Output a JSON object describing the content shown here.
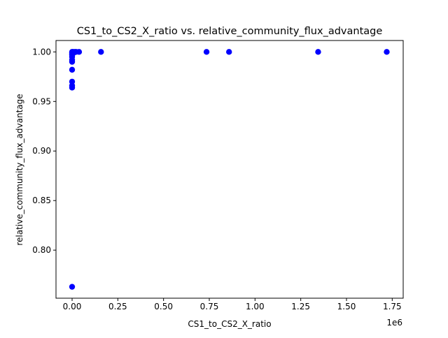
{
  "chart_data": {
    "type": "scatter",
    "title": "CS1_to_CS2_X_ratio vs. relative_community_flux_advantage",
    "xlabel": "CS1_to_CS2_X_ratio",
    "ylabel": "relative_community_flux_advantage",
    "x_offset_label": "1e6",
    "x_scale_factor": 1000000,
    "xlim": [
      -88000,
      1810000
    ],
    "ylim": [
      0.7515,
      1.0115
    ],
    "x_ticks": [
      0,
      250000,
      500000,
      750000,
      1000000,
      1250000,
      1500000,
      1750000
    ],
    "x_tick_labels": [
      "0.00",
      "0.25",
      "0.50",
      "0.75",
      "1.00",
      "1.25",
      "1.50",
      "1.75"
    ],
    "y_ticks": [
      0.8,
      0.85,
      0.9,
      0.95,
      1.0
    ],
    "y_tick_labels": [
      "0.80",
      "0.85",
      "0.90",
      "0.95",
      "1.00"
    ],
    "grid": false,
    "marker_color": "#0000ff",
    "series": [
      {
        "points": [
          {
            "x": 0,
            "y": 1.0
          },
          {
            "x": 0,
            "y": 0.999
          },
          {
            "x": 0,
            "y": 0.998
          },
          {
            "x": 0,
            "y": 0.997
          },
          {
            "x": 0,
            "y": 0.995
          },
          {
            "x": 0,
            "y": 0.992
          },
          {
            "x": 0,
            "y": 0.99
          },
          {
            "x": 0,
            "y": 0.982
          },
          {
            "x": 0,
            "y": 0.97
          },
          {
            "x": 0,
            "y": 0.966
          },
          {
            "x": 0,
            "y": 0.964
          },
          {
            "x": 0,
            "y": 0.763
          },
          {
            "x": 5000,
            "y": 1.0
          },
          {
            "x": 8000,
            "y": 0.999
          },
          {
            "x": 15000,
            "y": 1.0
          },
          {
            "x": 22000,
            "y": 1.0
          },
          {
            "x": 38000,
            "y": 1.0
          },
          {
            "x": 158000,
            "y": 1.0
          },
          {
            "x": 735000,
            "y": 1.0
          },
          {
            "x": 858000,
            "y": 1.0
          },
          {
            "x": 1345000,
            "y": 1.0
          },
          {
            "x": 1720000,
            "y": 1.0
          }
        ]
      }
    ]
  }
}
